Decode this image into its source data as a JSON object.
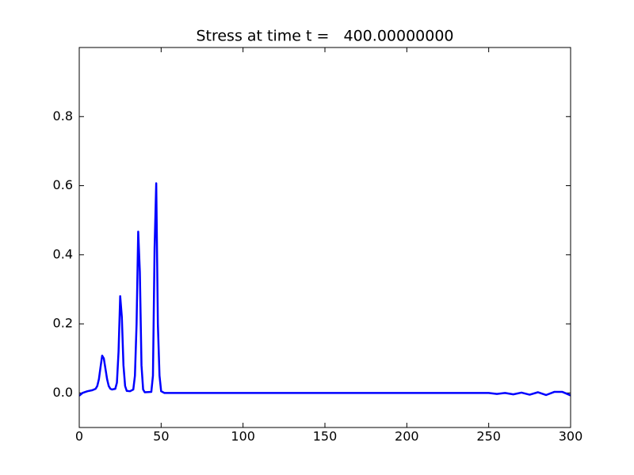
{
  "chart_data": {
    "type": "line",
    "title": "Stress at time t =   400.00000000",
    "x": [
      0,
      2,
      5,
      8,
      10,
      11,
      12,
      13,
      14,
      15,
      16,
      17,
      18,
      19,
      20,
      22,
      23,
      24,
      25,
      26,
      27,
      28,
      29,
      31,
      33,
      34,
      35,
      36,
      37,
      38,
      39,
      40,
      44,
      45,
      46,
      47,
      48,
      49,
      50,
      52,
      240,
      250,
      255,
      260,
      265,
      270,
      275,
      280,
      285,
      290,
      295,
      300
    ],
    "series": [
      {
        "color": "#0000ff",
        "values": [
          -0.008,
          0.0,
          0.005,
          0.008,
          0.012,
          0.02,
          0.04,
          0.075,
          0.108,
          0.1,
          0.07,
          0.04,
          0.02,
          0.012,
          0.01,
          0.012,
          0.03,
          0.12,
          0.28,
          0.22,
          0.08,
          0.02,
          0.006,
          0.005,
          0.01,
          0.05,
          0.2,
          0.467,
          0.35,
          0.08,
          0.01,
          0.002,
          0.003,
          0.05,
          0.42,
          0.607,
          0.2,
          0.05,
          0.005,
          0.0,
          0.0,
          0.0,
          -0.003,
          0.0,
          -0.004,
          0.001,
          -0.005,
          0.002,
          -0.006,
          0.003,
          0.003,
          -0.007
        ]
      }
    ],
    "xlim": [
      0,
      300
    ],
    "xticks": [
      0,
      50,
      100,
      150,
      200,
      250,
      300
    ],
    "ylim": [
      -0.1,
      1.0
    ],
    "yticks": [
      {
        "value": 0,
        "label": "0.0"
      },
      0.2,
      0.4,
      0.6,
      0.8
    ],
    "grid": false
  }
}
